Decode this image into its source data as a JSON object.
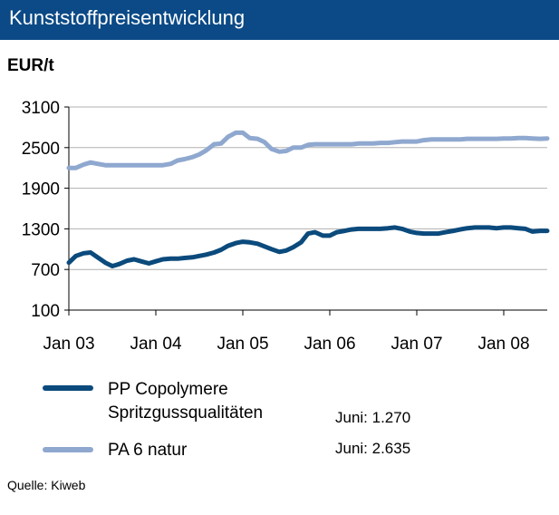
{
  "header": {
    "title": "Kunststoffpreisentwicklung"
  },
  "unit_label": "EUR/t",
  "source": "Quelle: Kiweb",
  "legend": [
    {
      "label_line1": "PP Copolymere",
      "label_line2": "Spritzgussqualitäten",
      "value_text": "Juni: 1.270"
    },
    {
      "label_line1": "PA 6 natur",
      "label_line2": "",
      "value_text": "Juni: 2.635"
    }
  ],
  "colors": {
    "header_bg": "#0b4a86",
    "pp": "#0b4a7c",
    "pa": "#8fa8cf"
  },
  "chart_data": {
    "type": "line",
    "title": "Kunststoffpreisentwicklung",
    "ylabel": "EUR/t",
    "ylim": [
      100,
      3100
    ],
    "yticks": [
      100,
      700,
      1300,
      1900,
      2500,
      3100
    ],
    "xlim": [
      2003.0,
      2008.5
    ],
    "xticks": [
      {
        "x": 2003.0,
        "label": "Jan 03"
      },
      {
        "x": 2004.0,
        "label": "Jan 04"
      },
      {
        "x": 2005.0,
        "label": "Jan 05"
      },
      {
        "x": 2006.0,
        "label": "Jan 06"
      },
      {
        "x": 2007.0,
        "label": "Jan 07"
      },
      {
        "x": 2008.0,
        "label": "Jan 08"
      }
    ],
    "grid": "horizontal",
    "series": [
      {
        "name": "PP Copolymere Spritzgussqualitäten",
        "color": "#0b4a7c",
        "points": [
          [
            2003.0,
            800
          ],
          [
            2003.08,
            900
          ],
          [
            2003.17,
            940
          ],
          [
            2003.25,
            950
          ],
          [
            2003.33,
            880
          ],
          [
            2003.42,
            800
          ],
          [
            2003.5,
            750
          ],
          [
            2003.58,
            780
          ],
          [
            2003.67,
            830
          ],
          [
            2003.75,
            850
          ],
          [
            2003.83,
            820
          ],
          [
            2003.92,
            790
          ],
          [
            2004.0,
            820
          ],
          [
            2004.08,
            850
          ],
          [
            2004.17,
            860
          ],
          [
            2004.25,
            860
          ],
          [
            2004.33,
            870
          ],
          [
            2004.42,
            880
          ],
          [
            2004.5,
            900
          ],
          [
            2004.58,
            920
          ],
          [
            2004.67,
            950
          ],
          [
            2004.75,
            990
          ],
          [
            2004.83,
            1050
          ],
          [
            2004.92,
            1090
          ],
          [
            2005.0,
            1110
          ],
          [
            2005.08,
            1100
          ],
          [
            2005.17,
            1080
          ],
          [
            2005.25,
            1040
          ],
          [
            2005.33,
            1000
          ],
          [
            2005.42,
            960
          ],
          [
            2005.5,
            980
          ],
          [
            2005.58,
            1030
          ],
          [
            2005.67,
            1100
          ],
          [
            2005.75,
            1230
          ],
          [
            2005.83,
            1250
          ],
          [
            2005.92,
            1200
          ],
          [
            2006.0,
            1200
          ],
          [
            2006.08,
            1250
          ],
          [
            2006.17,
            1270
          ],
          [
            2006.25,
            1290
          ],
          [
            2006.33,
            1300
          ],
          [
            2006.42,
            1300
          ],
          [
            2006.5,
            1300
          ],
          [
            2006.58,
            1300
          ],
          [
            2006.67,
            1310
          ],
          [
            2006.75,
            1320
          ],
          [
            2006.83,
            1300
          ],
          [
            2006.92,
            1260
          ],
          [
            2007.0,
            1240
          ],
          [
            2007.08,
            1230
          ],
          [
            2007.17,
            1230
          ],
          [
            2007.25,
            1230
          ],
          [
            2007.33,
            1250
          ],
          [
            2007.42,
            1270
          ],
          [
            2007.5,
            1290
          ],
          [
            2007.58,
            1310
          ],
          [
            2007.67,
            1320
          ],
          [
            2007.75,
            1320
          ],
          [
            2007.83,
            1320
          ],
          [
            2007.92,
            1310
          ],
          [
            2008.0,
            1320
          ],
          [
            2008.08,
            1320
          ],
          [
            2008.17,
            1310
          ],
          [
            2008.25,
            1300
          ],
          [
            2008.33,
            1260
          ],
          [
            2008.42,
            1270
          ],
          [
            2008.5,
            1270
          ]
        ]
      },
      {
        "name": "PA 6 natur",
        "color": "#8fa8cf",
        "points": [
          [
            2003.0,
            2200
          ],
          [
            2003.08,
            2200
          ],
          [
            2003.17,
            2250
          ],
          [
            2003.25,
            2280
          ],
          [
            2003.33,
            2260
          ],
          [
            2003.42,
            2240
          ],
          [
            2003.5,
            2240
          ],
          [
            2003.58,
            2240
          ],
          [
            2003.67,
            2240
          ],
          [
            2003.75,
            2240
          ],
          [
            2003.83,
            2240
          ],
          [
            2003.92,
            2240
          ],
          [
            2004.0,
            2240
          ],
          [
            2004.08,
            2240
          ],
          [
            2004.17,
            2260
          ],
          [
            2004.25,
            2310
          ],
          [
            2004.33,
            2330
          ],
          [
            2004.42,
            2360
          ],
          [
            2004.5,
            2400
          ],
          [
            2004.58,
            2460
          ],
          [
            2004.67,
            2550
          ],
          [
            2004.75,
            2560
          ],
          [
            2004.83,
            2660
          ],
          [
            2004.92,
            2720
          ],
          [
            2005.0,
            2720
          ],
          [
            2005.08,
            2640
          ],
          [
            2005.17,
            2630
          ],
          [
            2005.25,
            2580
          ],
          [
            2005.33,
            2480
          ],
          [
            2005.42,
            2440
          ],
          [
            2005.5,
            2450
          ],
          [
            2005.58,
            2500
          ],
          [
            2005.67,
            2500
          ],
          [
            2005.75,
            2540
          ],
          [
            2005.83,
            2550
          ],
          [
            2005.92,
            2550
          ],
          [
            2006.0,
            2550
          ],
          [
            2006.08,
            2550
          ],
          [
            2006.17,
            2550
          ],
          [
            2006.25,
            2550
          ],
          [
            2006.33,
            2560
          ],
          [
            2006.42,
            2560
          ],
          [
            2006.5,
            2560
          ],
          [
            2006.58,
            2570
          ],
          [
            2006.67,
            2570
          ],
          [
            2006.75,
            2580
          ],
          [
            2006.83,
            2590
          ],
          [
            2006.92,
            2590
          ],
          [
            2007.0,
            2590
          ],
          [
            2007.08,
            2610
          ],
          [
            2007.17,
            2620
          ],
          [
            2007.25,
            2620
          ],
          [
            2007.33,
            2620
          ],
          [
            2007.42,
            2620
          ],
          [
            2007.5,
            2620
          ],
          [
            2007.58,
            2630
          ],
          [
            2007.67,
            2630
          ],
          [
            2007.75,
            2630
          ],
          [
            2007.83,
            2630
          ],
          [
            2007.92,
            2630
          ],
          [
            2008.0,
            2635
          ],
          [
            2008.08,
            2635
          ],
          [
            2008.17,
            2640
          ],
          [
            2008.25,
            2640
          ],
          [
            2008.33,
            2635
          ],
          [
            2008.42,
            2630
          ],
          [
            2008.5,
            2635
          ]
        ]
      }
    ]
  }
}
